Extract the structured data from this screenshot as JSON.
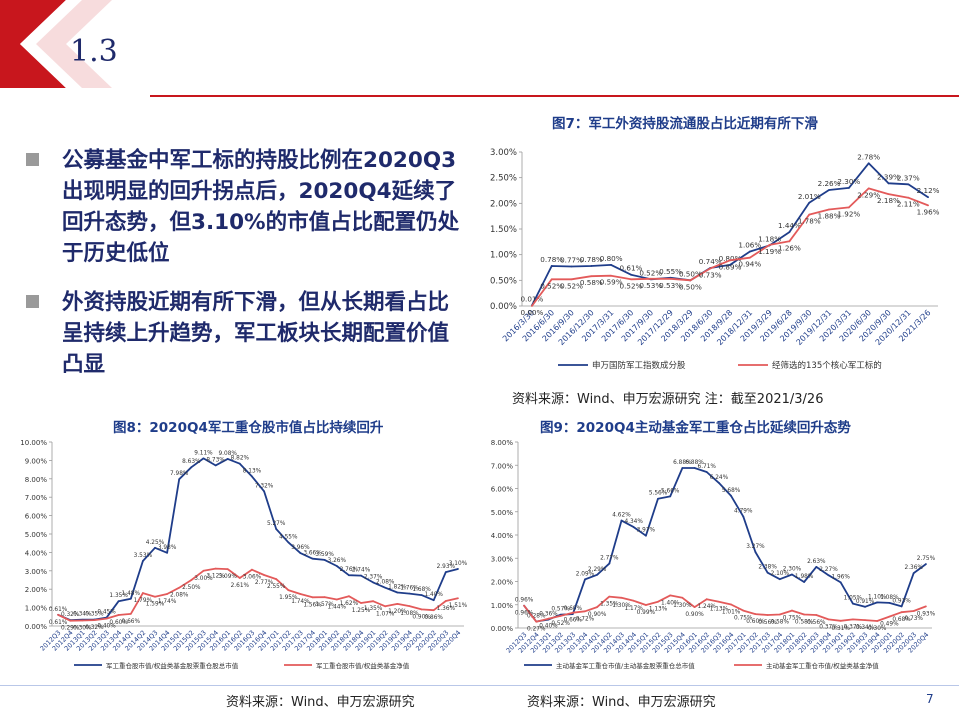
{
  "header": {
    "section": "1.3"
  },
  "bullets": [
    "公募基金中军工标的持股比例在2020Q3出现明显的回升拐点后，2020Q4延续了回升态势，但3.10%的市值占比配置仍处于历史低位",
    "外资持股近期有所下滑，但从长期看占比呈持续上升趋势，军工板块长期配置价值凸显"
  ],
  "fig7": {
    "title": "图7：军工外资持股流通股占比近期有所下滑",
    "source": "资料来源：Wind、申万宏源研究 注：截至2021/3/26"
  },
  "fig8": {
    "title": "图8：2020Q4军工重仓股市值占比持续回升",
    "source": "资料来源：Wind、申万宏源研究"
  },
  "fig9": {
    "title": "图9：2020Q4主动基金军工重仓占比延续回升态势",
    "source": "资料来源：Wind、申万宏源研究"
  },
  "page_number": "7",
  "colors": {
    "navy": "#1f3d8a",
    "red": "#e35a5a",
    "banner_red": "#c8161d"
  },
  "chart_data": [
    {
      "id": "fig7",
      "type": "line",
      "x": [
        "2016/3/30",
        "2016/6/30",
        "2016/9/30",
        "2016/12/30",
        "2017/3/31",
        "2017/6/30",
        "2017/9/30",
        "2017/12/29",
        "2018/3/29",
        "2018/6/30",
        "2018/9/28",
        "2018/12/31",
        "2019/3/29",
        "2019/6/28",
        "2019/9/30",
        "2019/12/31",
        "2020/3/31",
        "2020/6/30",
        "2020/9/30",
        "2020/12/31",
        "2021/3/26"
      ],
      "series": [
        {
          "name": "申万国防军工指数成分股",
          "values": [
            0.01,
            0.78,
            0.77,
            0.78,
            0.8,
            0.61,
            0.52,
            0.55,
            0.5,
            0.74,
            0.8,
            1.06,
            1.18,
            1.44,
            2.01,
            2.26,
            2.3,
            2.78,
            2.39,
            2.37,
            2.12
          ]
        },
        {
          "name": "经筛选的135个核心军工标的",
          "values": [
            0.0,
            0.52,
            0.52,
            0.58,
            0.59,
            0.52,
            0.53,
            0.53,
            0.5,
            0.73,
            0.89,
            0.94,
            1.19,
            1.26,
            1.78,
            1.88,
            1.92,
            2.29,
            2.18,
            2.11,
            1.96
          ]
        }
      ],
      "ylim": [
        0,
        3.0
      ],
      "yticks": [
        "0.00%",
        "0.50%",
        "1.00%",
        "1.50%",
        "2.00%",
        "2.50%",
        "3.00%"
      ]
    },
    {
      "id": "fig8",
      "type": "line",
      "x": [
        "2012Q3",
        "2012Q4",
        "2013Q1",
        "2013Q2",
        "2013Q3",
        "2013Q4",
        "2014Q1",
        "2014Q2",
        "2014Q3",
        "2014Q4",
        "2015Q1",
        "2015Q2",
        "2015Q3",
        "2015Q4",
        "2016Q1",
        "2016Q2",
        "2016Q3",
        "2016Q4",
        "2017Q1",
        "2017Q2",
        "2017Q3",
        "2017Q4",
        "2018Q1",
        "2018Q2",
        "2018Q3",
        "2018Q4",
        "2019Q1",
        "2019Q2",
        "2019Q3",
        "2019Q4",
        "2020Q1",
        "2020Q2",
        "2020Q3",
        "2020Q4"
      ],
      "series": [
        {
          "name": "军工重仓股市值/权益类基金股票重仓股总市值",
          "values": [
            0.61,
            0.32,
            0.34,
            0.35,
            0.45,
            1.35,
            1.48,
            3.53,
            4.25,
            3.98,
            7.98,
            8.63,
            9.11,
            8.73,
            9.08,
            8.82,
            8.13,
            7.32,
            5.27,
            4.55,
            3.96,
            3.66,
            3.59,
            3.26,
            2.76,
            2.74,
            2.37,
            2.08,
            1.82,
            1.76,
            1.68,
            1.4,
            2.93,
            3.1
          ]
        },
        {
          "name": "军工重仓股市值/权益类基金净值",
          "values": [
            0.61,
            0.29,
            0.3,
            0.32,
            0.4,
            0.6,
            0.66,
            1.79,
            1.59,
            1.74,
            2.08,
            2.5,
            3.0,
            3.12,
            3.09,
            2.61,
            3.06,
            2.77,
            2.55,
            1.95,
            1.74,
            1.56,
            1.57,
            1.44,
            1.62,
            1.25,
            1.35,
            1.07,
            1.2,
            1.08,
            0.9,
            0.86,
            1.36,
            1.51
          ]
        }
      ],
      "ylim": [
        0,
        10
      ],
      "yticks": [
        "0.00%",
        "1.00%",
        "2.00%",
        "3.00%",
        "4.00%",
        "5.00%",
        "6.00%",
        "7.00%",
        "8.00%",
        "9.00%",
        "10.00%"
      ]
    },
    {
      "id": "fig9",
      "type": "line",
      "x": [
        "2012Q3",
        "2012Q4",
        "2013Q1",
        "2013Q2",
        "2013Q3",
        "2013Q4",
        "2014Q1",
        "2014Q2",
        "2014Q3",
        "2014Q4",
        "2015Q1",
        "2015Q2",
        "2015Q3",
        "2015Q4",
        "2016Q1",
        "2016Q2",
        "2016Q3",
        "2016Q4",
        "2017Q1",
        "2017Q2",
        "2017Q3",
        "2017Q4",
        "2018Q1",
        "2018Q2",
        "2018Q3",
        "2018Q4",
        "2019Q1",
        "2019Q2",
        "2019Q3",
        "2019Q4",
        "2020Q1",
        "2020Q2",
        "2020Q3",
        "2020Q4"
      ],
      "series": [
        {
          "name": "主动基金军工重仓市值/主动基金股票重仓总市值",
          "values": [
            0.96,
            0.28,
            0.36,
            0.57,
            0.6,
            2.09,
            2.29,
            2.77,
            4.62,
            4.34,
            3.97,
            5.56,
            5.66,
            6.88,
            6.88,
            6.71,
            6.24,
            5.68,
            4.79,
            3.27,
            2.38,
            2.1,
            2.3,
            1.98,
            2.63,
            2.27,
            1.96,
            1.05,
            0.91,
            1.1,
            1.08,
            0.93,
            2.36,
            2.75
          ]
        },
        {
          "name": "主动基金军工重仓市值/权益类基金净值",
          "values": [
            0.96,
            0.27,
            0.4,
            0.52,
            0.66,
            0.72,
            0.9,
            1.35,
            1.3,
            1.17,
            0.99,
            1.13,
            1.4,
            1.3,
            0.9,
            1.24,
            1.13,
            1.01,
            0.75,
            0.6,
            0.56,
            0.58,
            0.75,
            0.58,
            0.56,
            0.37,
            0.31,
            0.37,
            0.34,
            0.3,
            0.49,
            0.68,
            0.73,
            0.93
          ]
        }
      ],
      "ylim": [
        0,
        8
      ],
      "yticks": [
        "0.00%",
        "1.00%",
        "2.00%",
        "3.00%",
        "4.00%",
        "5.00%",
        "6.00%",
        "7.00%",
        "8.00%"
      ]
    }
  ]
}
